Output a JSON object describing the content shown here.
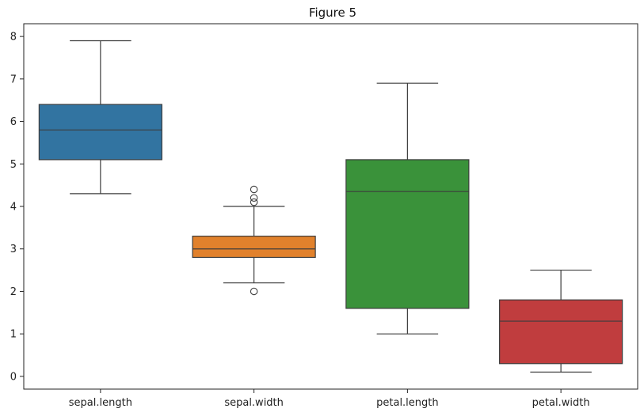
{
  "chart_data": {
    "type": "box",
    "title": "Figure 5",
    "xlabel": "",
    "ylabel": "",
    "ylim": [
      -0.3,
      8.3
    ],
    "yticks": [
      0,
      1,
      2,
      3,
      4,
      5,
      6,
      7,
      8
    ],
    "grid": false,
    "legend": "none",
    "categories": [
      "sepal.length",
      "sepal.width",
      "petal.length",
      "petal.width"
    ],
    "boxes": [
      {
        "category": "sepal.length",
        "whisker_low": 4.3,
        "q1": 5.1,
        "median": 5.8,
        "q3": 6.4,
        "whisker_high": 7.9,
        "outliers": [],
        "color": "#3274a1"
      },
      {
        "category": "sepal.width",
        "whisker_low": 2.2,
        "q1": 2.8,
        "median": 3.0,
        "q3": 3.3,
        "whisker_high": 4.0,
        "outliers": [
          2.0,
          4.1,
          4.2,
          4.4
        ],
        "color": "#e1812c"
      },
      {
        "category": "petal.length",
        "whisker_low": 1.0,
        "q1": 1.6,
        "median": 4.35,
        "q3": 5.1,
        "whisker_high": 6.9,
        "outliers": [],
        "color": "#3a923a"
      },
      {
        "category": "petal.width",
        "whisker_low": 0.1,
        "q1": 0.3,
        "median": 1.3,
        "q3": 1.8,
        "whisker_high": 2.5,
        "outliers": [],
        "color": "#c03d3e"
      }
    ]
  }
}
